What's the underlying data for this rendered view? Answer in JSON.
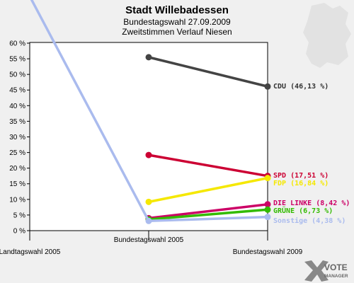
{
  "header": {
    "title": "Stadt Willebadessen",
    "subtitle1": "Bundestagswahl 27.09.2009",
    "subtitle2": "Zweitstimmen Verlauf Niesen"
  },
  "logo": {
    "line1": "VOTE",
    "line2": "MANAGER"
  },
  "chart_data": {
    "type": "line",
    "categories": [
      "Landtagswahl 2005",
      "Bundestagswahl 2005",
      "Bundestagswahl 2009"
    ],
    "y_ticks": [
      "0 %",
      "5 %",
      "10 %",
      "15 %",
      "20 %",
      "25 %",
      "30 %",
      "35 %",
      "40 %",
      "45 %",
      "50 %",
      "55 %",
      "60 %"
    ],
    "ylim": [
      0,
      60
    ],
    "grid": false,
    "series": [
      {
        "name": "CDU",
        "label": "CDU (46,13 %)",
        "color": "#444444",
        "values": [
          null,
          55.5,
          46.13
        ]
      },
      {
        "name": "SPD",
        "label": "SPD (17,51 %)",
        "color": "#cc0033",
        "values": [
          null,
          24.2,
          17.51
        ]
      },
      {
        "name": "FDP",
        "label": "FDP (16,84 %)",
        "color": "#f5e800",
        "values": [
          null,
          9.2,
          16.84
        ]
      },
      {
        "name": "DIE LINKE",
        "label": "DIE LINKE (8,42 %)",
        "color": "#cc0066",
        "values": [
          null,
          4.0,
          8.42
        ]
      },
      {
        "name": "GRÜNE",
        "label": "GRÜNE (6,73 %)",
        "color": "#33bb00",
        "values": [
          null,
          3.6,
          6.73
        ]
      },
      {
        "name": "Sonstige",
        "label": "Sonstige (4,38 %)",
        "color": "#aabbee",
        "values": [
          75,
          3.1,
          4.38
        ]
      }
    ]
  }
}
